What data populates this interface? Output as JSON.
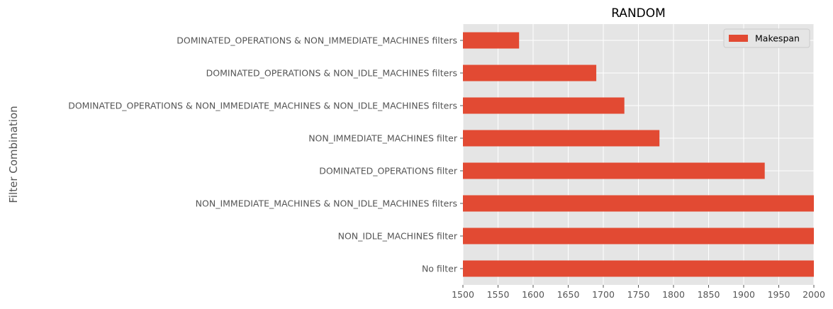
{
  "chart_data": {
    "type": "bar",
    "orientation": "horizontal",
    "title": "RANDOM",
    "xlabel": "",
    "ylabel": "Filter Combination",
    "xlim": [
      1500,
      2000
    ],
    "xticks": [
      "1500",
      "1550",
      "1600",
      "1650",
      "1700",
      "1750",
      "1800",
      "1850",
      "1900",
      "1950",
      "2000"
    ],
    "grid": true,
    "legend_position": "top-right",
    "categories": [
      "DOMINATED_OPERATIONS & NON_IMMEDIATE_MACHINES filters",
      "DOMINATED_OPERATIONS & NON_IDLE_MACHINES filters",
      "DOMINATED_OPERATIONS & NON_IMMEDIATE_MACHINES & NON_IDLE_MACHINES filters",
      "NON_IMMEDIATE_MACHINES filter",
      "DOMINATED_OPERATIONS filter",
      "NON_IMMEDIATE_MACHINES & NON_IDLE_MACHINES filters",
      "NON_IDLE_MACHINES filter",
      "No filter"
    ],
    "series": [
      {
        "name": "Makespan",
        "color": "#e24a33",
        "values": [
          1580,
          1690,
          1730,
          1780,
          1930,
          2000,
          2000,
          2000
        ]
      }
    ],
    "background_color": "#e5e5e5"
  }
}
